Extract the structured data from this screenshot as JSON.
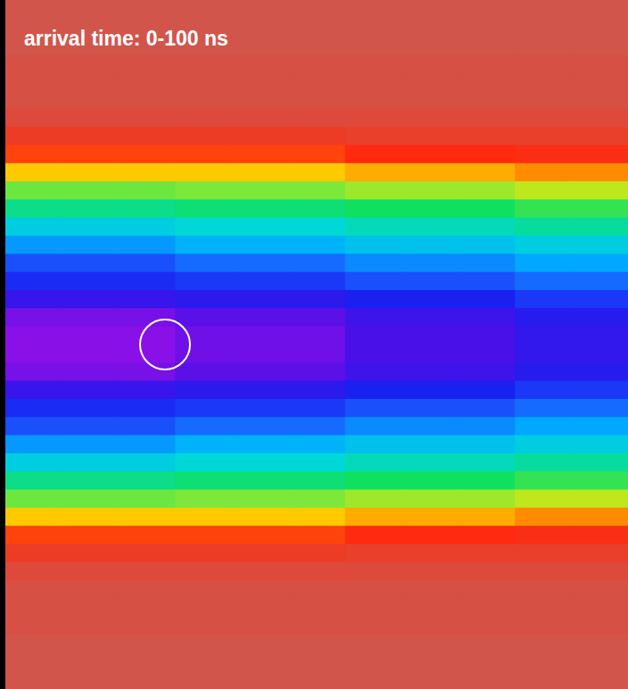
{
  "chart_data": {
    "type": "heatmap",
    "title": "arrival time: 0-100 ns",
    "tick_labels": false,
    "color_range": [
      0,
      1
    ],
    "cells": [
      [
        0.01,
        0.01,
        0.01,
        0.01,
        0.01,
        0.01,
        0.01,
        0.01,
        0.01,
        0.01,
        0.01
      ],
      [
        0.01,
        0.01,
        0.01,
        0.01,
        0.01,
        0.01,
        0.01,
        0.01,
        0.01,
        0.01,
        0.01
      ],
      [
        0.01,
        0.01,
        0.01,
        0.01,
        0.01,
        0.01,
        0.01,
        0.01,
        0.01,
        0.01,
        0.01
      ],
      [
        0.02,
        0.02,
        0.02,
        0.02,
        0.02,
        0.02,
        0.02,
        0.02,
        0.02,
        0.02,
        0.02
      ],
      [
        0.02,
        0.02,
        0.02,
        0.02,
        0.02,
        0.02,
        0.02,
        0.02,
        0.02,
        0.02,
        0.02
      ],
      [
        0.02,
        0.02,
        0.02,
        0.02,
        0.02,
        0.02,
        0.02,
        0.02,
        0.02,
        0.02,
        0.02
      ],
      [
        0.03,
        0.03,
        0.03,
        0.03,
        0.03,
        0.03,
        0.03,
        0.03,
        0.03,
        0.03,
        0.03
      ],
      [
        0.06,
        0.06,
        0.06,
        0.06,
        0.06,
        0.06,
        0.05,
        0.05,
        0.05,
        0.05,
        0.05
      ],
      [
        0.12,
        0.12,
        0.12,
        0.12,
        0.12,
        0.12,
        0.1,
        0.1,
        0.1,
        0.09,
        0.09
      ],
      [
        0.22,
        0.22,
        0.22,
        0.22,
        0.22,
        0.22,
        0.2,
        0.2,
        0.2,
        0.18,
        0.18
      ],
      [
        0.33,
        0.33,
        0.33,
        0.32,
        0.32,
        0.32,
        0.3,
        0.3,
        0.3,
        0.28,
        0.28
      ],
      [
        0.42,
        0.42,
        0.42,
        0.4,
        0.4,
        0.4,
        0.38,
        0.38,
        0.38,
        0.36,
        0.36
      ],
      [
        0.52,
        0.52,
        0.52,
        0.5,
        0.5,
        0.5,
        0.47,
        0.47,
        0.47,
        0.44,
        0.44
      ],
      [
        0.62,
        0.62,
        0.62,
        0.58,
        0.58,
        0.58,
        0.55,
        0.55,
        0.55,
        0.52,
        0.52
      ],
      [
        0.72,
        0.72,
        0.72,
        0.68,
        0.68,
        0.68,
        0.64,
        0.64,
        0.64,
        0.6,
        0.6
      ],
      [
        0.78,
        0.78,
        0.78,
        0.76,
        0.76,
        0.76,
        0.72,
        0.72,
        0.72,
        0.68,
        0.68
      ],
      [
        0.85,
        0.85,
        0.85,
        0.83,
        0.83,
        0.83,
        0.8,
        0.8,
        0.8,
        0.76,
        0.76
      ],
      [
        0.93,
        0.93,
        0.93,
        0.9,
        0.9,
        0.9,
        0.86,
        0.86,
        0.86,
        0.82,
        0.82
      ],
      [
        0.95,
        0.95,
        0.95,
        0.92,
        0.92,
        0.92,
        0.88,
        0.88,
        0.88,
        0.84,
        0.84
      ],
      [
        0.95,
        0.95,
        0.95,
        0.92,
        0.92,
        0.92,
        0.88,
        0.88,
        0.88,
        0.84,
        0.84
      ],
      [
        0.93,
        0.93,
        0.93,
        0.9,
        0.9,
        0.9,
        0.86,
        0.86,
        0.86,
        0.82,
        0.82
      ],
      [
        0.85,
        0.85,
        0.85,
        0.83,
        0.83,
        0.83,
        0.8,
        0.8,
        0.8,
        0.76,
        0.76
      ],
      [
        0.78,
        0.78,
        0.78,
        0.76,
        0.76,
        0.76,
        0.72,
        0.72,
        0.72,
        0.68,
        0.68
      ],
      [
        0.72,
        0.72,
        0.72,
        0.68,
        0.68,
        0.68,
        0.64,
        0.64,
        0.64,
        0.6,
        0.6
      ],
      [
        0.62,
        0.62,
        0.62,
        0.58,
        0.58,
        0.58,
        0.55,
        0.55,
        0.55,
        0.52,
        0.52
      ],
      [
        0.52,
        0.52,
        0.52,
        0.5,
        0.5,
        0.5,
        0.47,
        0.47,
        0.47,
        0.44,
        0.44
      ],
      [
        0.42,
        0.42,
        0.42,
        0.4,
        0.4,
        0.4,
        0.38,
        0.38,
        0.38,
        0.36,
        0.36
      ],
      [
        0.33,
        0.33,
        0.33,
        0.32,
        0.32,
        0.32,
        0.3,
        0.3,
        0.3,
        0.28,
        0.28
      ],
      [
        0.22,
        0.22,
        0.22,
        0.22,
        0.22,
        0.22,
        0.2,
        0.2,
        0.2,
        0.18,
        0.18
      ],
      [
        0.12,
        0.12,
        0.12,
        0.12,
        0.12,
        0.12,
        0.1,
        0.1,
        0.1,
        0.09,
        0.09
      ],
      [
        0.06,
        0.06,
        0.06,
        0.06,
        0.06,
        0.06,
        0.05,
        0.05,
        0.05,
        0.05,
        0.05
      ],
      [
        0.03,
        0.03,
        0.03,
        0.03,
        0.03,
        0.03,
        0.03,
        0.03,
        0.03,
        0.03,
        0.03
      ],
      [
        0.02,
        0.02,
        0.02,
        0.02,
        0.02,
        0.02,
        0.02,
        0.02,
        0.02,
        0.02,
        0.02
      ],
      [
        0.02,
        0.02,
        0.02,
        0.02,
        0.02,
        0.02,
        0.02,
        0.02,
        0.02,
        0.02,
        0.02
      ],
      [
        0.02,
        0.02,
        0.02,
        0.02,
        0.02,
        0.02,
        0.02,
        0.02,
        0.02,
        0.02,
        0.02
      ],
      [
        0.01,
        0.01,
        0.01,
        0.01,
        0.01,
        0.01,
        0.01,
        0.01,
        0.01,
        0.01,
        0.01
      ],
      [
        0.01,
        0.01,
        0.01,
        0.01,
        0.01,
        0.01,
        0.01,
        0.01,
        0.01,
        0.01,
        0.01
      ],
      [
        0.01,
        0.01,
        0.01,
        0.01,
        0.01,
        0.01,
        0.01,
        0.01,
        0.01,
        0.01,
        0.01
      ]
    ]
  }
}
